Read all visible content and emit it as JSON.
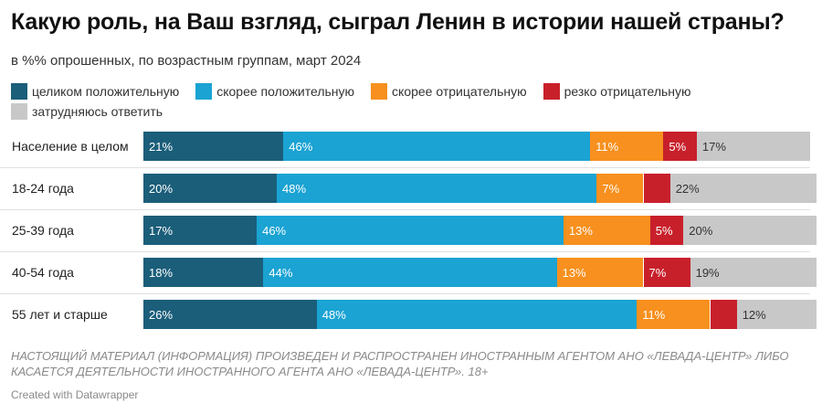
{
  "header": {
    "title": "Какую роль, на Ваш взгляд, сыграл Ленин в истории нашей страны?",
    "subtitle": "в %% опрошенных, по возрастным группам, март 2024"
  },
  "legend": [
    {
      "label": "целиком положительную",
      "color": "#1b5e7a"
    },
    {
      "label": "скорее положительную",
      "color": "#1aa3d3"
    },
    {
      "label": "скорее отрицательную",
      "color": "#f7901e"
    },
    {
      "label": "резко отрицательную",
      "color": "#c8202b"
    },
    {
      "label": "затрудняюсь ответить",
      "color": "#c8c8c8"
    }
  ],
  "chart_data": {
    "type": "bar",
    "orientation": "horizontal",
    "stacked": true,
    "title": "Какую роль, на Ваш взгляд, сыграл Ленин в истории нашей страны?",
    "subtitle": "в %% опрошенных, по возрастным группам, март 2024",
    "categories": [
      "Население в целом",
      "18-24 года",
      "25-39 года",
      "40-54 года",
      "55 лет и старше"
    ],
    "series": [
      {
        "name": "целиком положительную",
        "values": [
          21,
          20,
          17,
          18,
          26
        ],
        "labels": [
          "21%",
          "20%",
          "17%",
          "18%",
          "26%"
        ]
      },
      {
        "name": "скорее положительную",
        "values": [
          46,
          48,
          46,
          44,
          48
        ],
        "labels": [
          "46%",
          "48%",
          "46%",
          "44%",
          "48%"
        ]
      },
      {
        "name": "скорее отрицательную",
        "values": [
          11,
          7,
          13,
          13,
          11
        ],
        "labels": [
          "11%",
          "7%",
          "13%",
          "13%",
          "11%"
        ]
      },
      {
        "name": "резко отрицательную",
        "values": [
          5,
          4,
          5,
          7,
          4
        ],
        "labels": [
          "5%",
          "",
          "5%",
          "7%",
          ""
        ]
      },
      {
        "name": "затрудняюсь ответить",
        "values": [
          17,
          22,
          20,
          19,
          12
        ],
        "labels": [
          "17%",
          "22%",
          "20%",
          "19%",
          "12%"
        ]
      }
    ],
    "xlim": [
      0,
      100
    ]
  },
  "footer": {
    "note": "НАСТОЯЩИЙ МАТЕРИАЛ (ИНФОРМАЦИЯ) ПРОИЗВЕДЕН И РАСПРОСТРАНЕН ИНОСТРАННЫМ АГЕНТОМ АНО «ЛЕВАДА-ЦЕНТР» ЛИБО КАСАЕТСЯ ДЕЯТЕЛЬНОСТИ ИНОСТРАННОГО АГЕНТА АНО «ЛЕВАДА-ЦЕНТР». 18+",
    "credit": "Created with Datawrapper"
  }
}
